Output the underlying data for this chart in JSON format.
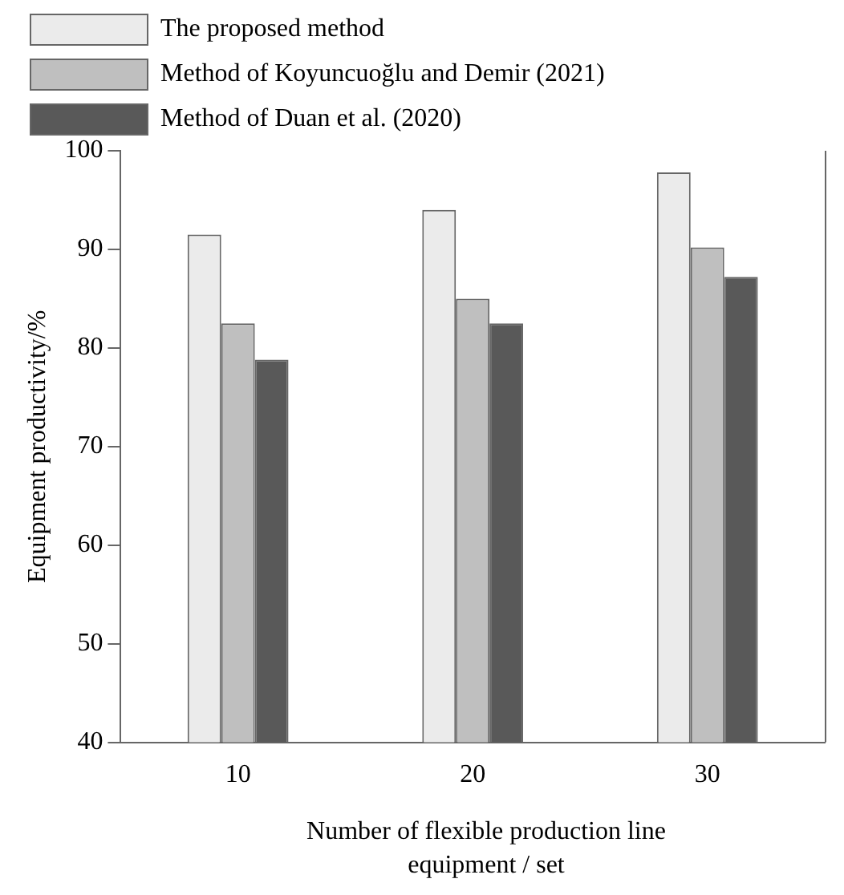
{
  "chart_data": {
    "type": "bar",
    "xlabel": "Number of flexible production line equipment / set",
    "ylabel": "Equipment productivity/%",
    "categories": [
      "10",
      "20",
      "30"
    ],
    "series": [
      {
        "name": "The proposed method",
        "color": "#ebebeb",
        "values": [
          91.5,
          94,
          97.8
        ]
      },
      {
        "name": "Method of Koyuncuoğlu and Demir (2021)",
        "color": "#bfbfbf",
        "values": [
          82.5,
          85,
          90.2
        ]
      },
      {
        "name": "Method of Duan et al. (2020)",
        "color": "#595959",
        "values": [
          78.8,
          82.5,
          87.2
        ]
      }
    ],
    "ylim": [
      40,
      100
    ],
    "yticks": [
      40,
      50,
      60,
      70,
      80,
      90,
      100
    ],
    "grid": false,
    "legend": "top left"
  }
}
